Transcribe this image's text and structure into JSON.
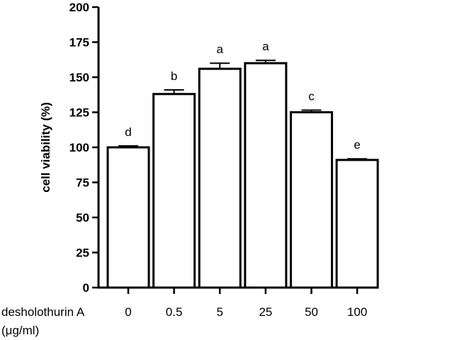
{
  "chart_data": {
    "type": "bar",
    "categories": [
      "0",
      "0.5",
      "5",
      "25",
      "50",
      "100"
    ],
    "values": [
      100,
      138,
      156,
      160,
      125,
      91
    ],
    "errors": [
      1,
      3,
      4,
      2,
      1.5,
      0.8
    ],
    "significance_letters": [
      "d",
      "b",
      "a",
      "a",
      "c",
      "e"
    ],
    "title": "",
    "xlabel_line1": "desholothurin A",
    "xlabel_line2": "(μg/ml)",
    "ylabel": "cell viability (%)",
    "ylim": [
      0,
      200
    ],
    "yticks": [
      0,
      25,
      50,
      75,
      100,
      125,
      150,
      175,
      200
    ],
    "grid": false,
    "bar_fill": "#ffffff",
    "bar_stroke": "#000000"
  }
}
